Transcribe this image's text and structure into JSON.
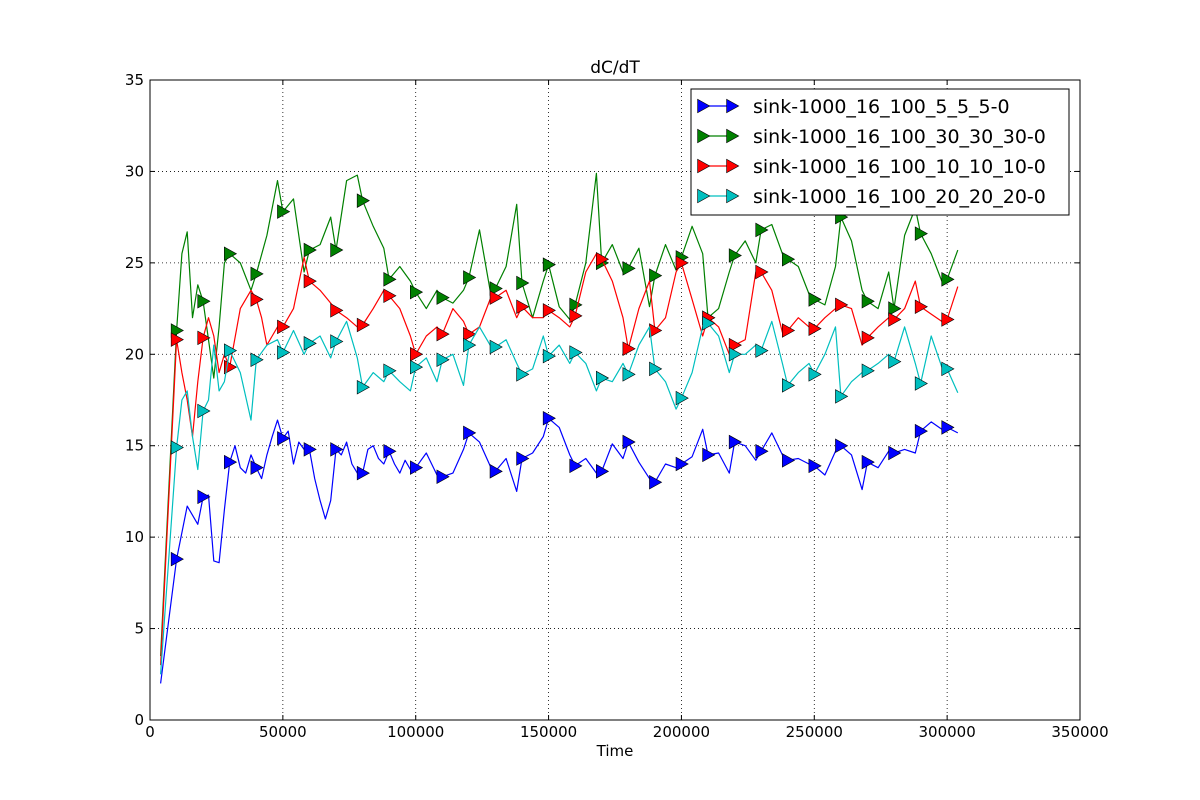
{
  "chart_data": {
    "type": "line",
    "title": "dC/dT",
    "xlabel": "Time",
    "ylabel": "",
    "xlim": [
      0,
      350000
    ],
    "ylim": [
      0,
      35
    ],
    "xticks": [
      0,
      50000,
      100000,
      150000,
      200000,
      250000,
      300000,
      350000
    ],
    "yticks": [
      0,
      5,
      10,
      15,
      20,
      25,
      30,
      35
    ],
    "grid": true,
    "legend_position": "upper-right",
    "marker": "triangle-right",
    "marker_every_x": 10000,
    "series": [
      {
        "name": "sink-1000_16_100_5_5_5-0",
        "color": "#0000ff",
        "x": [
          4000,
          10000,
          14000,
          18000,
          20000,
          22000,
          24000,
          26000,
          28000,
          30000,
          32000,
          34000,
          36000,
          38000,
          40000,
          42000,
          44000,
          46000,
          48000,
          50000,
          52000,
          54000,
          56000,
          58000,
          60000,
          62000,
          64000,
          66000,
          68000,
          70000,
          72000,
          74000,
          76000,
          78000,
          80000,
          82000,
          84000,
          86000,
          88000,
          90000,
          92000,
          94000,
          96000,
          98000,
          100000,
          104000,
          108000,
          110000,
          114000,
          118000,
          120000,
          124000,
          128000,
          130000,
          134000,
          138000,
          140000,
          144000,
          148000,
          150000,
          154000,
          158000,
          160000,
          164000,
          168000,
          170000,
          174000,
          178000,
          180000,
          184000,
          188000,
          190000,
          194000,
          198000,
          200000,
          204000,
          208000,
          210000,
          214000,
          218000,
          220000,
          224000,
          228000,
          230000,
          234000,
          238000,
          240000,
          244000,
          248000,
          250000,
          254000,
          258000,
          260000,
          264000,
          268000,
          270000,
          274000,
          278000,
          280000,
          284000,
          288000,
          290000,
          294000,
          298000,
          300000,
          304000
        ],
        "y": [
          2,
          8.8,
          11.7,
          10.7,
          12.2,
          12.3,
          8.7,
          8.6,
          11.5,
          14.1,
          15.0,
          13.8,
          13.5,
          14.5,
          13.8,
          13.2,
          14.5,
          15.5,
          16.4,
          15.4,
          15.8,
          14.0,
          15.2,
          14.8,
          14.8,
          13.2,
          12.0,
          11.0,
          12.0,
          14.8,
          14.5,
          15.2,
          14.0,
          13.5,
          13.5,
          14.8,
          15.0,
          14.3,
          14.0,
          14.7,
          14.0,
          13.5,
          14.2,
          13.7,
          13.8,
          14.6,
          13.4,
          13.3,
          13.5,
          14.8,
          15.7,
          15.2,
          13.9,
          13.6,
          14.3,
          12.5,
          14.3,
          14.6,
          15.5,
          16.5,
          16.0,
          14.5,
          13.9,
          14.3,
          13.5,
          13.6,
          15.1,
          14.3,
          15.2,
          14.1,
          13.2,
          13.0,
          14.0,
          13.8,
          14.0,
          14.4,
          15.9,
          14.5,
          14.6,
          13.5,
          15.2,
          15.0,
          14.2,
          14.7,
          15.7,
          14.5,
          14.2,
          14.3,
          14.0,
          13.9,
          13.4,
          14.7,
          15.0,
          14.5,
          12.6,
          14.1,
          13.8,
          14.7,
          14.6,
          14.8,
          14.6,
          15.8,
          16.3,
          15.9,
          16.0,
          15.7
        ]
      },
      {
        "name": "sink-1000_16_100_30_30_30-0",
        "color": "#008000",
        "x": [
          4000,
          10000,
          12000,
          14000,
          16000,
          18000,
          20000,
          22000,
          24000,
          26000,
          28000,
          30000,
          34000,
          38000,
          40000,
          44000,
          48000,
          50000,
          54000,
          58000,
          60000,
          64000,
          68000,
          70000,
          74000,
          78000,
          80000,
          84000,
          88000,
          90000,
          94000,
          98000,
          100000,
          104000,
          108000,
          110000,
          114000,
          118000,
          120000,
          124000,
          128000,
          130000,
          134000,
          138000,
          140000,
          144000,
          148000,
          150000,
          154000,
          158000,
          160000,
          164000,
          168000,
          170000,
          174000,
          178000,
          180000,
          184000,
          188000,
          190000,
          194000,
          198000,
          200000,
          204000,
          208000,
          210000,
          214000,
          218000,
          220000,
          224000,
          228000,
          230000,
          234000,
          238000,
          240000,
          244000,
          248000,
          250000,
          254000,
          258000,
          260000,
          264000,
          268000,
          270000,
          274000,
          278000,
          280000,
          284000,
          288000,
          290000,
          294000,
          298000,
          300000,
          304000
        ],
        "y": [
          3.5,
          21.3,
          25.5,
          26.7,
          22.0,
          23.8,
          22.9,
          20.8,
          18.7,
          21.5,
          25.0,
          25.5,
          25.0,
          23.5,
          24.4,
          26.5,
          29.5,
          27.8,
          28.5,
          24.5,
          25.7,
          26.0,
          27.5,
          25.7,
          29.5,
          29.8,
          28.4,
          27.0,
          25.8,
          24.1,
          24.8,
          24.0,
          23.4,
          22.5,
          23.5,
          23.1,
          22.8,
          23.5,
          24.2,
          26.8,
          23.5,
          23.6,
          24.8,
          28.2,
          23.9,
          22.0,
          24.0,
          24.9,
          22.6,
          21.9,
          22.7,
          25.0,
          29.9,
          25.0,
          26.0,
          24.5,
          24.7,
          25.8,
          22.6,
          24.3,
          26.0,
          24.6,
          25.3,
          27.0,
          25.5,
          22.0,
          22.5,
          24.5,
          25.4,
          26.2,
          25.0,
          26.8,
          27.1,
          25.5,
          25.2,
          24.8,
          23.3,
          23.0,
          22.7,
          24.8,
          27.5,
          26.2,
          23.5,
          22.9,
          22.5,
          24.5,
          22.5,
          26.5,
          28.0,
          26.6,
          25.5,
          24.0,
          24.1,
          25.7
        ]
      },
      {
        "name": "sink-1000_16_100_10_10_10-0",
        "color": "#ff0000",
        "x": [
          4000,
          10000,
          12000,
          14000,
          16000,
          18000,
          20000,
          22000,
          24000,
          26000,
          28000,
          30000,
          34000,
          38000,
          40000,
          42000,
          44000,
          46000,
          48000,
          50000,
          54000,
          58000,
          60000,
          64000,
          68000,
          70000,
          74000,
          78000,
          80000,
          84000,
          88000,
          90000,
          94000,
          98000,
          100000,
          104000,
          108000,
          110000,
          114000,
          118000,
          120000,
          124000,
          128000,
          130000,
          134000,
          138000,
          140000,
          144000,
          148000,
          150000,
          154000,
          158000,
          160000,
          164000,
          168000,
          170000,
          174000,
          178000,
          180000,
          184000,
          188000,
          190000,
          194000,
          198000,
          200000,
          204000,
          208000,
          210000,
          214000,
          218000,
          220000,
          224000,
          228000,
          230000,
          234000,
          238000,
          240000,
          244000,
          248000,
          250000,
          254000,
          258000,
          260000,
          264000,
          268000,
          270000,
          274000,
          278000,
          280000,
          284000,
          288000,
          290000,
          294000,
          298000,
          300000,
          304000
        ],
        "y": [
          3,
          20.8,
          19.0,
          17.5,
          15.5,
          18.5,
          20.9,
          22.0,
          21.0,
          19.0,
          20.0,
          19.3,
          22.5,
          23.5,
          23.0,
          22.0,
          20.5,
          21.0,
          21.5,
          21.5,
          22.5,
          25.3,
          24.0,
          23.5,
          22.8,
          22.4,
          22.0,
          21.5,
          21.6,
          22.5,
          23.5,
          23.2,
          22.5,
          21.0,
          20.0,
          21.0,
          21.5,
          21.1,
          22.5,
          21.8,
          21.1,
          21.5,
          23.0,
          23.1,
          23.5,
          22.0,
          22.6,
          22.0,
          22.0,
          22.4,
          22.0,
          21.5,
          22.1,
          24.5,
          25.5,
          25.2,
          24.0,
          22.0,
          20.3,
          22.5,
          24.0,
          21.3,
          22.0,
          24.5,
          25.0,
          23.0,
          21.0,
          22.0,
          21.5,
          20.0,
          20.5,
          20.8,
          24.5,
          24.5,
          23.5,
          21.2,
          21.3,
          22.0,
          21.5,
          21.4,
          22.0,
          22.5,
          22.7,
          22.5,
          20.5,
          20.9,
          21.5,
          22.0,
          21.9,
          22.5,
          24.0,
          22.6,
          22.2,
          21.8,
          21.9,
          23.7
        ]
      },
      {
        "name": "sink-1000_16_100_20_20_20-0",
        "color": "#00bfbf",
        "x": [
          4000,
          10000,
          12000,
          14000,
          16000,
          18000,
          20000,
          22000,
          24000,
          26000,
          28000,
          30000,
          34000,
          38000,
          40000,
          44000,
          48000,
          50000,
          54000,
          58000,
          60000,
          64000,
          68000,
          70000,
          74000,
          78000,
          80000,
          84000,
          88000,
          90000,
          94000,
          98000,
          100000,
          104000,
          108000,
          110000,
          114000,
          118000,
          120000,
          124000,
          128000,
          130000,
          134000,
          138000,
          140000,
          144000,
          148000,
          150000,
          154000,
          158000,
          160000,
          164000,
          168000,
          170000,
          174000,
          178000,
          180000,
          184000,
          188000,
          190000,
          194000,
          198000,
          200000,
          204000,
          208000,
          210000,
          214000,
          218000,
          220000,
          224000,
          228000,
          230000,
          234000,
          238000,
          240000,
          244000,
          248000,
          250000,
          254000,
          258000,
          260000,
          264000,
          268000,
          270000,
          274000,
          278000,
          280000,
          284000,
          288000,
          290000,
          294000,
          298000,
          300000,
          304000
        ],
        "y": [
          2.5,
          14.9,
          17.5,
          18.0,
          15.5,
          13.7,
          16.9,
          17.5,
          20.5,
          18.0,
          18.5,
          20.2,
          19.0,
          16.4,
          19.7,
          20.5,
          20.8,
          20.1,
          21.3,
          20.0,
          20.6,
          21.0,
          19.8,
          20.7,
          21.8,
          19.8,
          18.2,
          19.0,
          18.5,
          19.1,
          18.5,
          18.0,
          19.3,
          19.8,
          18.5,
          19.7,
          20.0,
          18.3,
          20.5,
          21.5,
          20.5,
          20.4,
          20.8,
          19.5,
          18.9,
          19.2,
          21.0,
          19.9,
          20.5,
          19.5,
          20.1,
          19.5,
          18.0,
          18.7,
          18.5,
          19.5,
          18.9,
          20.5,
          21.5,
          19.2,
          18.5,
          17.0,
          17.6,
          19.0,
          21.5,
          21.7,
          21.0,
          19.0,
          20.0,
          20.0,
          20.5,
          20.2,
          21.8,
          19.5,
          18.3,
          19.0,
          19.5,
          18.9,
          20.0,
          21.5,
          17.7,
          18.5,
          19.0,
          19.1,
          19.5,
          20.0,
          19.6,
          21.5,
          19.5,
          18.4,
          21.0,
          19.3,
          19.2,
          17.9
        ]
      }
    ]
  }
}
